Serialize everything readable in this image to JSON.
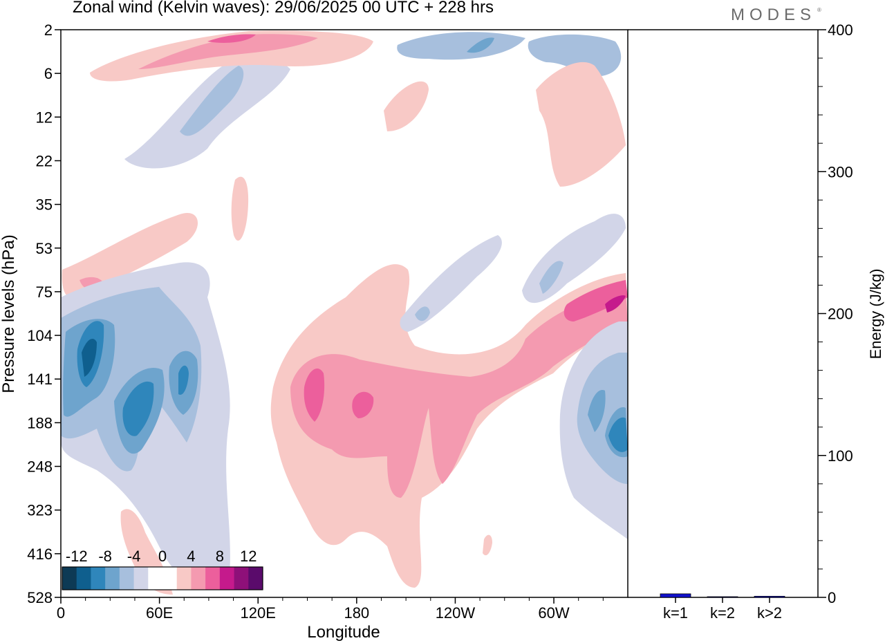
{
  "title": "Zonal wind (Kelvin waves):  29/06/2025  00 UTC  + 228 hrs",
  "brand": "MODES",
  "brand_mark": "®",
  "chart_data": [
    {
      "type": "heatmap",
      "xlabel": "Longitude",
      "ylabel": "Pressure levels (hPa)",
      "x_ticks": [
        "0",
        "60E",
        "120E",
        "180",
        "120W",
        "60W"
      ],
      "x_tick_values": [
        0,
        60,
        120,
        180,
        240,
        300
      ],
      "xlim": [
        0,
        345
      ],
      "y_ticks": [
        "2",
        "6",
        "12",
        "22",
        "35",
        "53",
        "75",
        "104",
        "141",
        "188",
        "248",
        "323",
        "416",
        "528"
      ],
      "y_axis": "pressure levels, top to bottom",
      "colorbar": {
        "labels": [
          "-12",
          "-8",
          "-4",
          "0",
          "4",
          "8",
          "12"
        ],
        "label_values": [
          -12,
          -8,
          -4,
          0,
          4,
          8,
          12
        ],
        "colors": [
          "#0d3a55",
          "#0f5f8e",
          "#2f86bb",
          "#6ea4cd",
          "#a7bfdd",
          "#d2d5e8",
          "#ffffff",
          "#ffffff",
          "#f8c9c6",
          "#f49ab0",
          "#ec5f9c",
          "#c51a8c",
          "#8e1079",
          "#5a0b6b"
        ]
      },
      "regions": [
        {
          "sign": "positive",
          "level": 4,
          "lon": [
            155,
            255
          ],
          "level_range": [
            "104",
            "416"
          ],
          "note": "main positive anomaly"
        },
        {
          "sign": "positive",
          "level": 8,
          "lon": [
            160,
            190
          ],
          "level_range": [
            "141",
            "188"
          ]
        },
        {
          "sign": "negative",
          "level": -12,
          "lon": [
            10,
            75
          ],
          "level_range": [
            "104",
            "188"
          ]
        },
        {
          "sign": "negative",
          "level": -8,
          "lon": [
            320,
            345
          ],
          "level_range": [
            "141",
            "248"
          ]
        },
        {
          "sign": "positive",
          "level": 8,
          "lon": [
            290,
            345
          ],
          "level_range": [
            "75",
            "141"
          ]
        }
      ]
    },
    {
      "type": "bar",
      "categories": [
        "k=1",
        "k=2",
        "k>2"
      ],
      "values": [
        2.5,
        0.4,
        0.8
      ],
      "ylabel": "Energy (J/kg)",
      "ylim": [
        0,
        400
      ],
      "y_ticks": [
        "0",
        "100",
        "200",
        "300",
        "400"
      ],
      "y_tick_values": [
        0,
        100,
        200,
        300,
        400
      ],
      "bar_color": "#1111cc"
    }
  ]
}
